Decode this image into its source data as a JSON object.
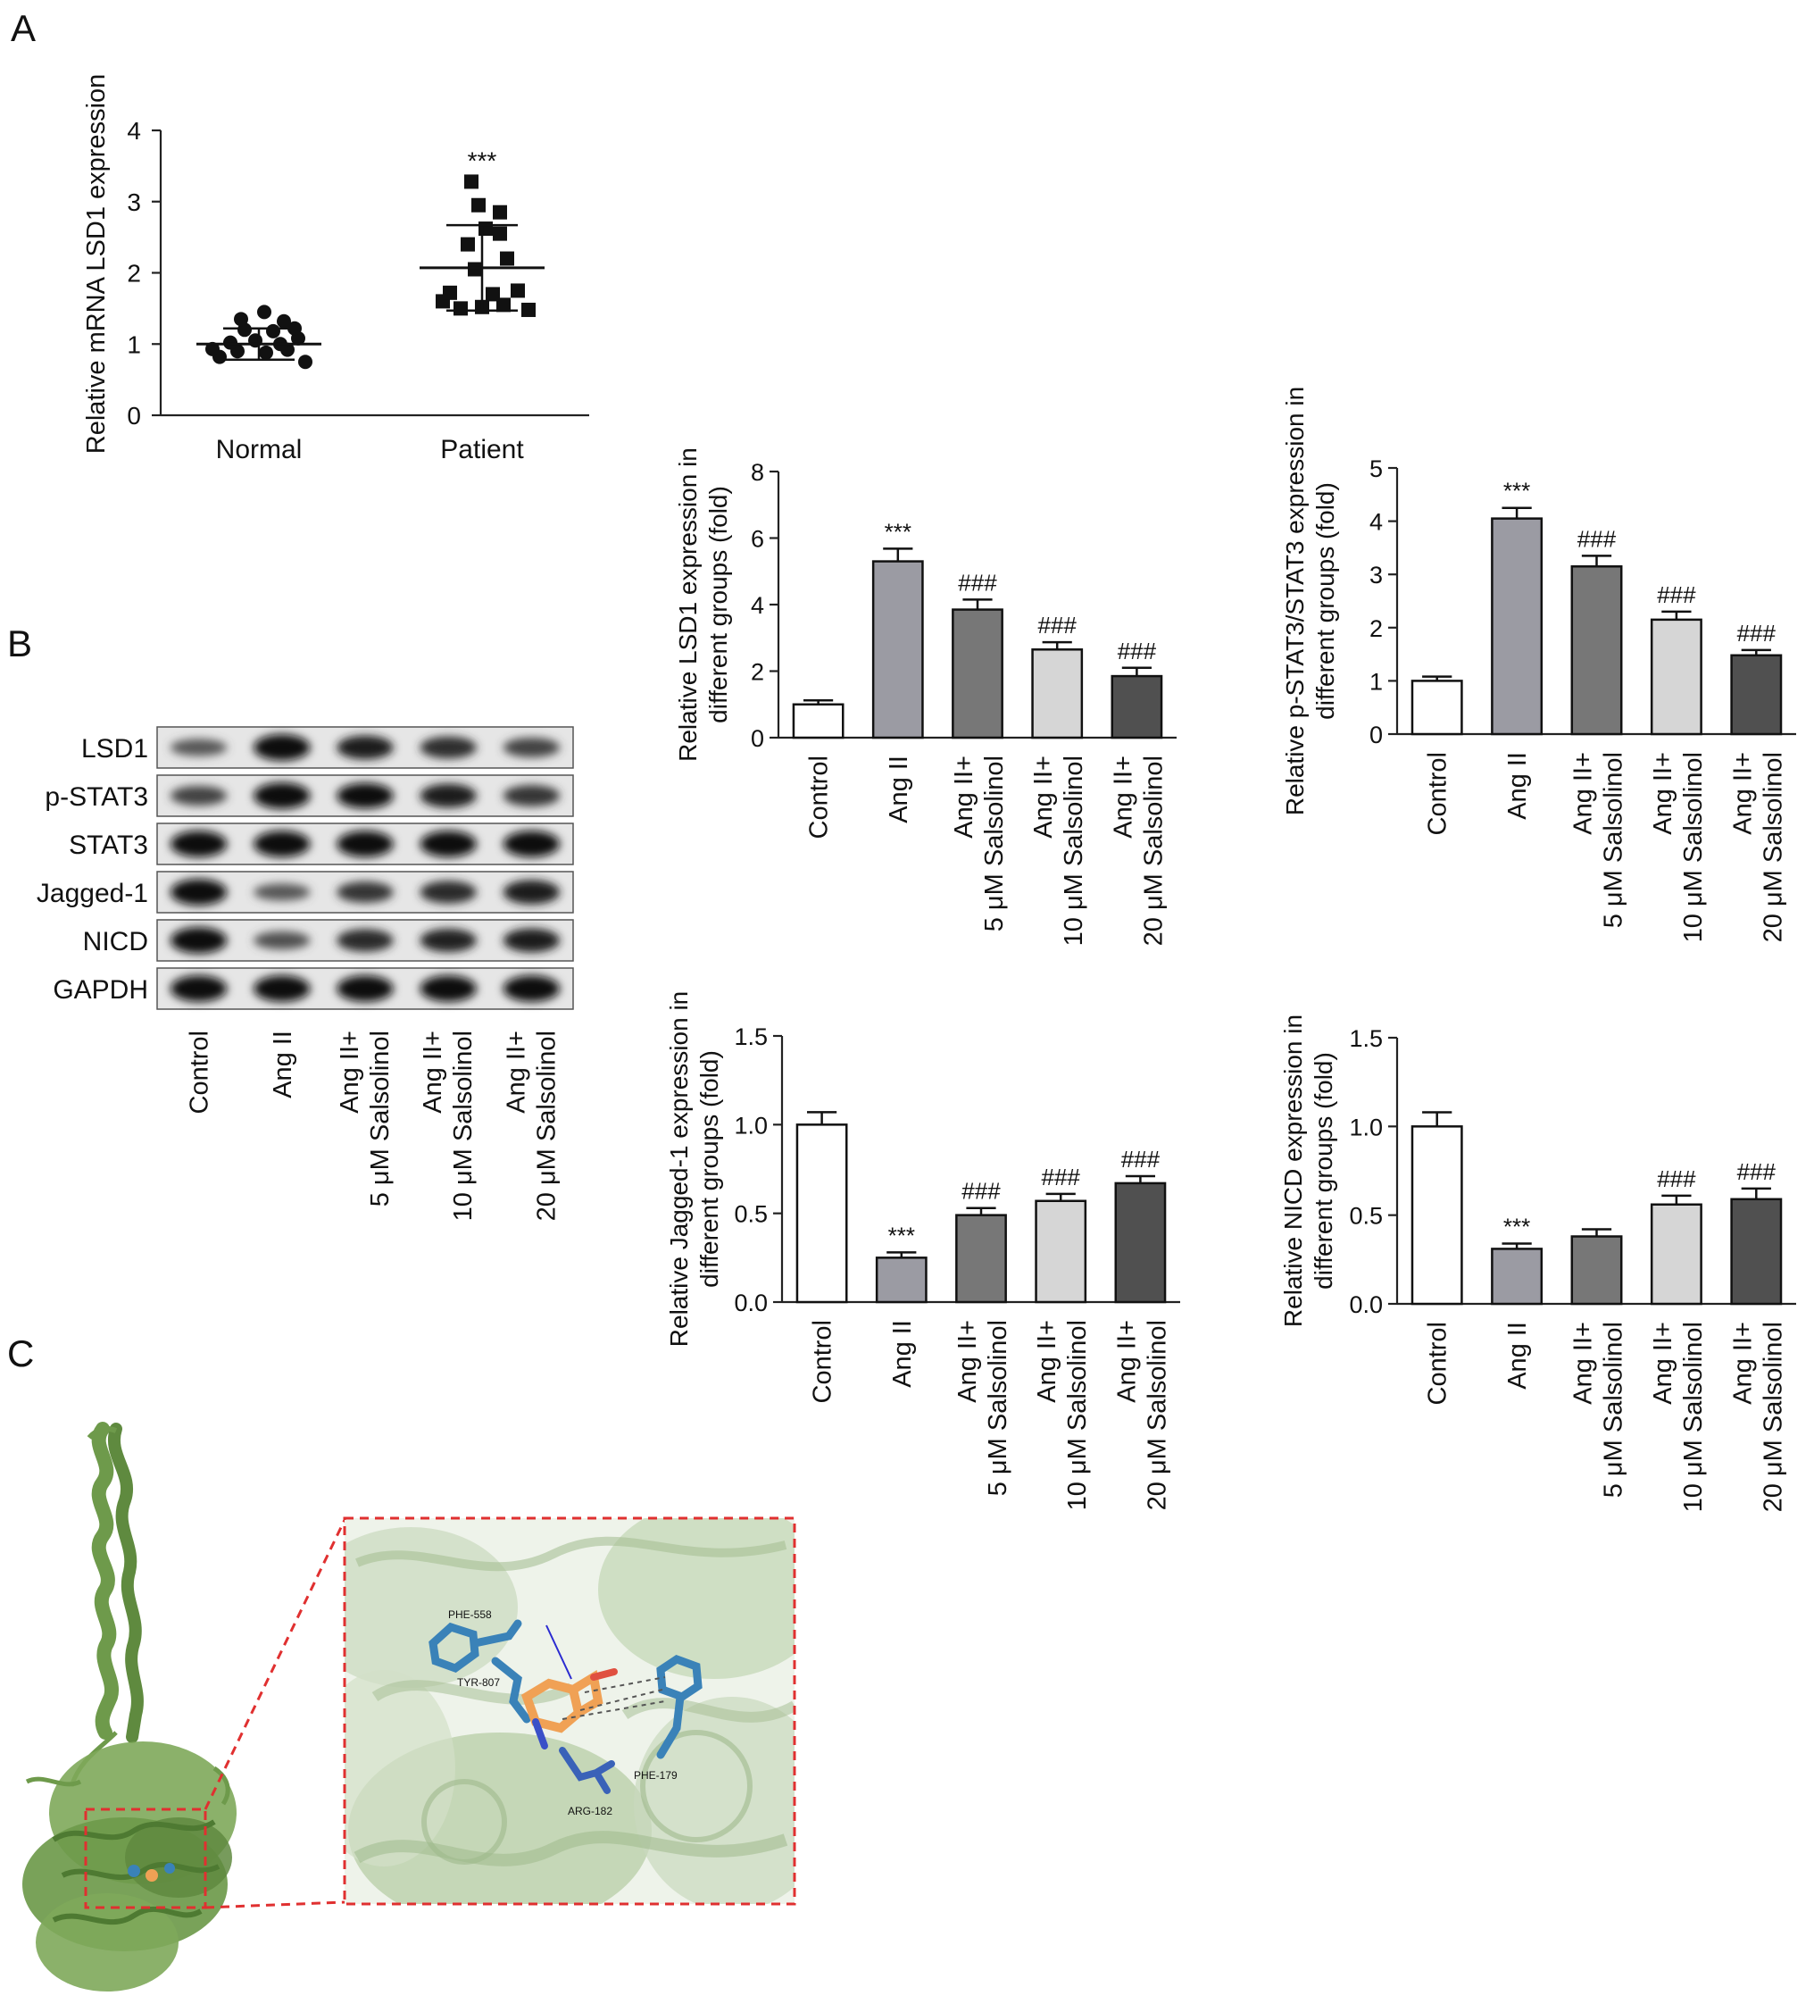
{
  "panel_labels": [
    "A",
    "B",
    "C"
  ],
  "chart_data": [
    {
      "id": "scatter_lsd1",
      "type": "scatter",
      "ylabel": "Relative mRNA LSD1 expression",
      "categories": [
        "Normal",
        "Patient"
      ],
      "ylim": [
        0,
        4
      ],
      "yticks": [
        "0",
        "1",
        "2",
        "3",
        "4"
      ],
      "series": [
        {
          "points": [
            [
              -0.22,
              0.82
            ],
            [
              -0.12,
              0.9
            ],
            [
              0.04,
              0.88
            ],
            [
              0.16,
              0.92
            ],
            [
              0.26,
              0.75
            ],
            [
              -0.16,
              1.02
            ],
            [
              -0.02,
              1.05
            ],
            [
              0.12,
              1.0
            ],
            [
              0.22,
              1.08
            ],
            [
              -0.26,
              0.93
            ],
            [
              -0.08,
              1.2
            ],
            [
              0.08,
              1.18
            ],
            [
              0.2,
              1.22
            ],
            [
              -0.1,
              1.35
            ],
            [
              0.03,
              1.45
            ],
            [
              0.14,
              1.32
            ]
          ],
          "mean": 1.0,
          "sd": 0.22,
          "marker": "circle"
        },
        {
          "points": [
            [
              -0.22,
              1.6
            ],
            [
              -0.12,
              1.5
            ],
            [
              0.0,
              1.52
            ],
            [
              0.12,
              1.55
            ],
            [
              0.26,
              1.48
            ],
            [
              -0.18,
              1.72
            ],
            [
              0.06,
              1.7
            ],
            [
              0.2,
              1.75
            ],
            [
              -0.04,
              2.05
            ],
            [
              0.14,
              2.2
            ],
            [
              -0.08,
              2.4
            ],
            [
              0.02,
              2.62
            ],
            [
              0.1,
              2.55
            ],
            [
              -0.02,
              2.95
            ],
            [
              0.1,
              2.85
            ],
            [
              -0.06,
              3.28
            ]
          ],
          "mean": 2.07,
          "sd": 0.6,
          "marker": "square"
        }
      ],
      "annotations": [
        "",
        "***"
      ]
    },
    {
      "id": "bar_lsd1",
      "type": "bar",
      "ylabel": [
        "Relative LSD1 expression in",
        "different groups (fold)"
      ],
      "categories": [
        [
          "Control"
        ],
        [
          "Ang II"
        ],
        [
          "Ang II+",
          "5 μM Salsolinol"
        ],
        [
          "Ang II+",
          "10 μM Salsolinol"
        ],
        [
          "Ang II+",
          "20 μM Salsolinol"
        ]
      ],
      "values": [
        1.0,
        5.3,
        3.85,
        2.65,
        1.85
      ],
      "errors": [
        0.12,
        0.38,
        0.3,
        0.22,
        0.25
      ],
      "ylim": [
        0,
        8
      ],
      "yticks": [
        "0",
        "2",
        "4",
        "6",
        "8"
      ],
      "annotations": [
        "",
        "***",
        "###",
        "###",
        "###"
      ]
    },
    {
      "id": "bar_pstat3",
      "type": "bar",
      "ylabel": [
        "Relative p-STAT3/STAT3 expression in",
        "different groups (fold)"
      ],
      "categories": [
        [
          "Control"
        ],
        [
          "Ang II"
        ],
        [
          "Ang II+",
          "5 μM Salsolinol"
        ],
        [
          "Ang II+",
          "10 μM Salsolinol"
        ],
        [
          "Ang II+",
          "20 μM Salsolinol"
        ]
      ],
      "values": [
        1.0,
        4.05,
        3.15,
        2.15,
        1.48
      ],
      "errors": [
        0.08,
        0.2,
        0.2,
        0.15,
        0.1
      ],
      "ylim": [
        0,
        5
      ],
      "yticks": [
        "0",
        "1",
        "2",
        "3",
        "4",
        "5"
      ],
      "annotations": [
        "",
        "***",
        "###",
        "###",
        "###"
      ]
    },
    {
      "id": "bar_jagged1",
      "type": "bar",
      "ylabel": [
        "Relative Jagged-1 expression in",
        "different groups (fold)"
      ],
      "categories": [
        [
          "Control"
        ],
        [
          "Ang II"
        ],
        [
          "Ang II+",
          "5 μM Salsolinol"
        ],
        [
          "Ang II+",
          "10 μM Salsolinol"
        ],
        [
          "Ang II+",
          "20 μM Salsolinol"
        ]
      ],
      "values": [
        1.0,
        0.25,
        0.49,
        0.57,
        0.67
      ],
      "errors": [
        0.07,
        0.03,
        0.04,
        0.04,
        0.04
      ],
      "ylim": [
        0,
        1.5
      ],
      "yticks": [
        "0.0",
        "0.5",
        "1.0",
        "1.5"
      ],
      "annotations": [
        "",
        "***",
        "###",
        "###",
        "###"
      ]
    },
    {
      "id": "bar_nicd",
      "type": "bar",
      "ylabel": [
        "Relative NICD expression in",
        "different groups (fold)"
      ],
      "categories": [
        [
          "Control"
        ],
        [
          "Ang II"
        ],
        [
          "Ang II+",
          "5 μM Salsolinol"
        ],
        [
          "Ang II+",
          "10 μM Salsolinol"
        ],
        [
          "Ang II+",
          "20 μM Salsolinol"
        ]
      ],
      "values": [
        1.0,
        0.31,
        0.38,
        0.56,
        0.59
      ],
      "errors": [
        0.08,
        0.03,
        0.04,
        0.05,
        0.06
      ],
      "ylim": [
        0,
        1.5
      ],
      "yticks": [
        "0.0",
        "0.5",
        "1.0",
        "1.5"
      ],
      "annotations": [
        "",
        "***",
        "",
        "###",
        "###"
      ]
    }
  ],
  "bar_fills": [
    "#ffffff",
    "#9b9ba3",
    "#777777",
    "#d6d6d6",
    "#505050"
  ],
  "blot": {
    "rows": [
      "LSD1",
      "p-STAT3",
      "STAT3",
      "Jagged-1",
      "NICD",
      "GAPDH"
    ],
    "intensity": [
      [
        0.45,
        1.0,
        0.85,
        0.75,
        0.6
      ],
      [
        0.6,
        1.0,
        0.95,
        0.85,
        0.7
      ],
      [
        1.0,
        1.0,
        1.0,
        1.0,
        1.0
      ],
      [
        1.0,
        0.45,
        0.7,
        0.78,
        0.88
      ],
      [
        1.0,
        0.5,
        0.78,
        0.82,
        0.85
      ],
      [
        1.0,
        1.0,
        1.0,
        1.0,
        1.0
      ]
    ],
    "lanes": [
      [
        "Control"
      ],
      [
        "Ang II"
      ],
      [
        "Ang II+",
        "5 μM Salsolinol"
      ],
      [
        "Ang II+",
        "10 μM Salsolinol"
      ],
      [
        "Ang II+",
        "20 μM Salsolinol"
      ]
    ]
  },
  "docking": {
    "residues": [
      "PHE-558",
      "TYR-807",
      "PHE-179",
      "ARG-182"
    ],
    "protein_color": "#6e9a4b",
    "ligand_color": "#f0a155",
    "residue_color": "#3a82b8"
  }
}
